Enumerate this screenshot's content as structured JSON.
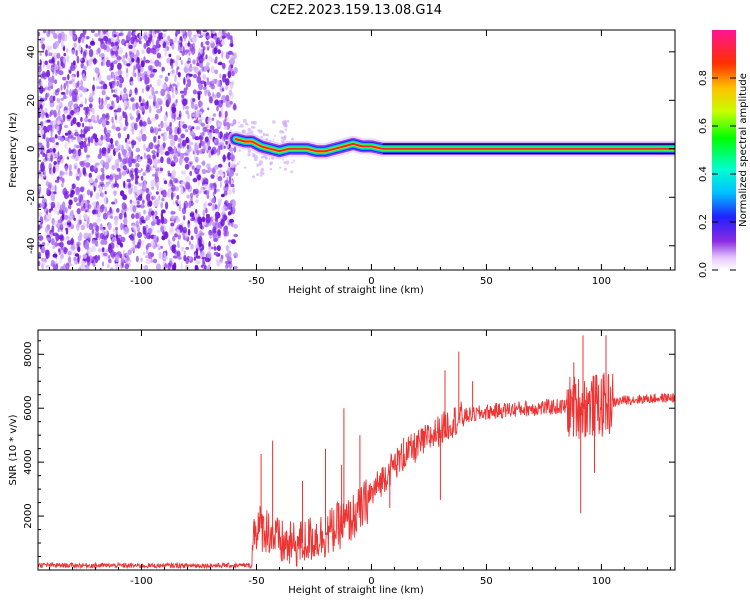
{
  "title": "C2E2.2023.159.13.08.G14",
  "chart_data": [
    {
      "type": "heatmap",
      "xlabel": "Height of straight line (km)",
      "ylabel": "Frequency (Hz)",
      "xlim": [
        -145,
        132
      ],
      "ylim": [
        -50,
        49
      ],
      "xticks": [
        -100,
        -50,
        0,
        50,
        100
      ],
      "yticks": [
        -40,
        -20,
        0,
        20,
        40
      ],
      "colorbar": {
        "label": "Normalized spectral amplitude",
        "ticks": [
          0.0,
          0.2,
          0.4,
          0.6,
          0.8
        ],
        "range": [
          0,
          1
        ]
      },
      "noise_region_x": [
        -145,
        -59
      ],
      "carrier_frequency": 0,
      "ridge_frequency_points": [
        [
          -59,
          4
        ],
        [
          -55,
          3
        ],
        [
          -52,
          3
        ],
        [
          -48,
          1
        ],
        [
          -44,
          0
        ],
        [
          -40,
          -1
        ],
        [
          -36,
          0
        ],
        [
          -32,
          0
        ],
        [
          -28,
          0
        ],
        [
          -24,
          -1
        ],
        [
          -20,
          -1
        ],
        [
          -16,
          0
        ],
        [
          -12,
          1
        ],
        [
          -8,
          2
        ],
        [
          -4,
          1
        ],
        [
          0,
          1
        ],
        [
          5,
          0
        ],
        [
          30,
          0
        ],
        [
          85,
          0
        ],
        [
          90,
          0
        ],
        [
          95,
          0
        ],
        [
          132,
          0
        ]
      ]
    },
    {
      "type": "line",
      "xlabel": "Height of straight line (km)",
      "ylabel": "SNR (10 * v/v)",
      "xlim": [
        -145,
        132
      ],
      "ylim": [
        0,
        8900
      ],
      "xticks": [
        -100,
        -50,
        0,
        50,
        100
      ],
      "yticks": [
        2000,
        4000,
        6000,
        8000
      ],
      "color": "#ee3333",
      "trend": [
        [
          -145,
          180
        ],
        [
          -100,
          160
        ],
        [
          -52,
          170
        ],
        [
          -51,
          1600
        ],
        [
          -45,
          1500
        ],
        [
          -40,
          1000
        ],
        [
          -35,
          900
        ],
        [
          -30,
          1000
        ],
        [
          -25,
          1200
        ],
        [
          -20,
          1300
        ],
        [
          -15,
          1600
        ],
        [
          -10,
          1800
        ],
        [
          -5,
          2200
        ],
        [
          0,
          2800
        ],
        [
          5,
          3400
        ],
        [
          10,
          3900
        ],
        [
          15,
          4300
        ],
        [
          20,
          4600
        ],
        [
          25,
          4900
        ],
        [
          30,
          5200
        ],
        [
          35,
          5500
        ],
        [
          40,
          5700
        ],
        [
          50,
          5850
        ],
        [
          60,
          5950
        ],
        [
          70,
          6000
        ],
        [
          80,
          6050
        ],
        [
          90,
          6050
        ],
        [
          100,
          6100
        ],
        [
          105,
          6200
        ],
        [
          110,
          6300
        ],
        [
          120,
          6350
        ],
        [
          132,
          6400
        ]
      ],
      "spikes": [
        [
          -48,
          4300
        ],
        [
          -43,
          4800
        ],
        [
          -30,
          3300
        ],
        [
          -20,
          4500
        ],
        [
          -13,
          3900
        ],
        [
          -12,
          6000
        ],
        [
          -5,
          5000
        ],
        [
          14,
          4900
        ],
        [
          25,
          5000
        ],
        [
          32,
          7400
        ],
        [
          38,
          8100
        ],
        [
          44,
          7000
        ],
        [
          88,
          7700
        ],
        [
          92,
          8700
        ],
        [
          102,
          8700
        ],
        [
          91,
          2100
        ],
        [
          97,
          3600
        ],
        [
          8,
          2300
        ],
        [
          30,
          2600
        ]
      ]
    }
  ]
}
